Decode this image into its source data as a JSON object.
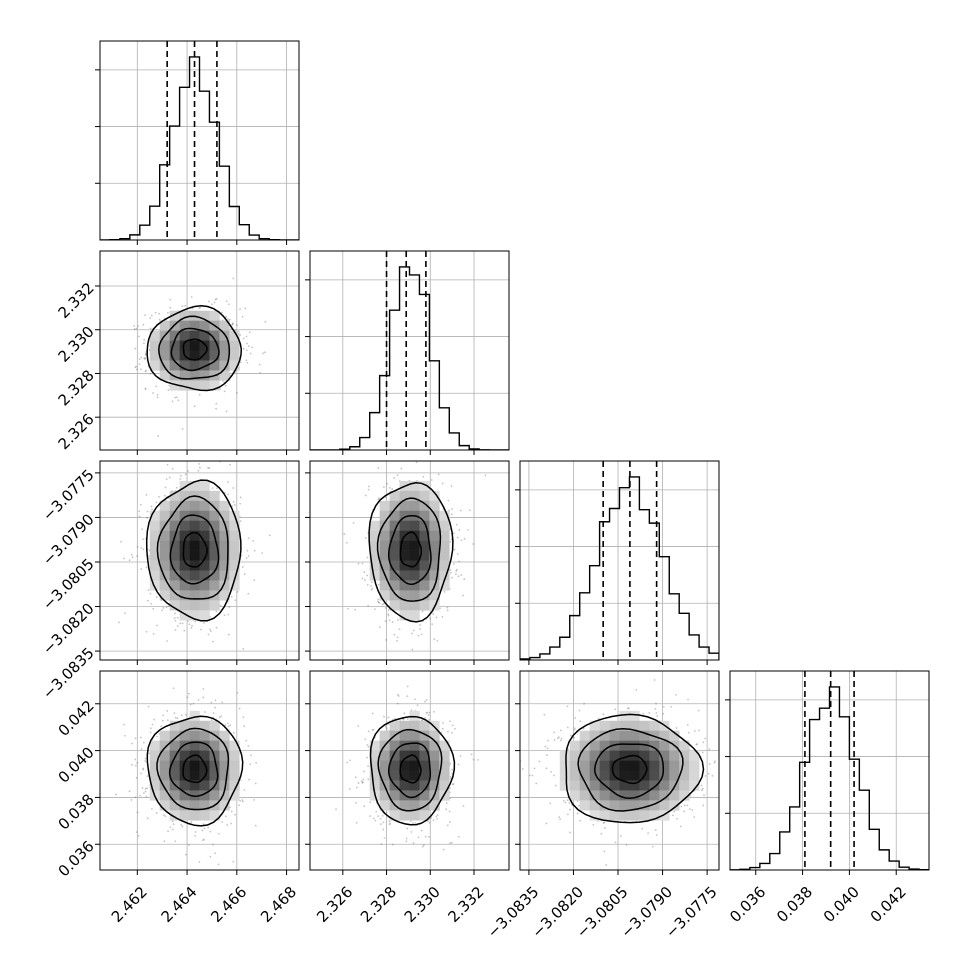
{
  "chart_data": {
    "type": "corner",
    "parameters": [
      {
        "mean": 2.4643,
        "std": 0.0009,
        "range": [
          2.4605,
          2.4685
        ],
        "ticks": [
          2.462,
          2.464,
          2.466,
          2.468
        ],
        "tick_labels": [
          "2.462",
          "2.464",
          "2.466",
          "2.468"
        ],
        "quantiles": [
          2.4632,
          2.4643,
          2.4652
        ]
      },
      {
        "mean": 2.3291,
        "std": 0.0009,
        "range": [
          2.3245,
          2.3336
        ],
        "ticks": [
          2.326,
          2.328,
          2.33,
          2.332
        ],
        "tick_labels": [
          "2.326",
          "2.328",
          "2.330",
          "2.332"
        ],
        "quantiles": [
          2.328,
          2.3289,
          2.3298
        ]
      },
      {
        "mean": -3.0801,
        "std": 0.0011,
        "range": [
          -3.0838,
          -3.0771
        ],
        "ticks": [
          -3.0835,
          -3.082,
          -3.0805,
          -3.079,
          -3.0775
        ],
        "tick_labels": [
          "−3.0835",
          "−3.0820",
          "−3.0805",
          "−3.0790",
          "−3.0775"
        ],
        "quantiles": [
          -3.081,
          -3.0801,
          -3.0792
        ]
      },
      {
        "mean": 0.0392,
        "std": 0.0011,
        "range": [
          0.0349,
          0.0434
        ],
        "ticks": [
          0.036,
          0.038,
          0.04,
          0.042
        ],
        "tick_labels": [
          "0.036",
          "0.038",
          "0.040",
          "0.042"
        ],
        "quantiles": [
          0.0381,
          0.0392,
          0.0402
        ]
      }
    ],
    "histogram_bins": 20,
    "contour_levels_sigma": [
      0.5,
      1.0,
      1.5,
      2.0
    ],
    "grid": true,
    "colors": {
      "line": "#000000",
      "grid": "#b0b0b0",
      "points": "#555555",
      "background": "#ffffff"
    }
  }
}
